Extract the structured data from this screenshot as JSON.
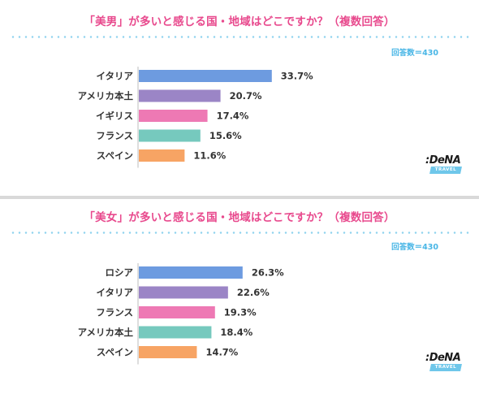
{
  "colors": {
    "title": "#e8498d",
    "dots": "#8fd3ee",
    "respondents": "#49b6e6",
    "bars": [
      "#6d9be0",
      "#9b85c6",
      "#ee79b4",
      "#76c9be",
      "#f7a464"
    ]
  },
  "logo": {
    "name": "DeNA",
    "sub": "TRAVEL"
  },
  "chart_data": [
    {
      "type": "bar",
      "orientation": "horizontal",
      "title": "「美男」が多いと感じる国・地域はどこですか？（複数回答）",
      "respondents": "回答数＝430",
      "categories": [
        "イタリア",
        "アメリカ本土",
        "イギリス",
        "フランス",
        "スペイン"
      ],
      "values": [
        33.7,
        20.7,
        17.4,
        15.6,
        11.6
      ],
      "value_labels": [
        "33.7%",
        "20.7%",
        "17.4%",
        "15.6%",
        "11.6%"
      ],
      "unit": "%",
      "grid": false,
      "legend": "none"
    },
    {
      "type": "bar",
      "orientation": "horizontal",
      "title": "「美女」が多いと感じる国・地域はどこですか？（複数回答）",
      "respondents": "回答数＝430",
      "categories": [
        "ロシア",
        "イタリア",
        "フランス",
        "アメリカ本土",
        "スペイン"
      ],
      "values": [
        26.3,
        22.6,
        19.3,
        18.4,
        14.7
      ],
      "value_labels": [
        "26.3%",
        "22.6%",
        "19.3%",
        "18.4%",
        "14.7%"
      ],
      "unit": "%",
      "grid": false,
      "legend": "none"
    }
  ]
}
